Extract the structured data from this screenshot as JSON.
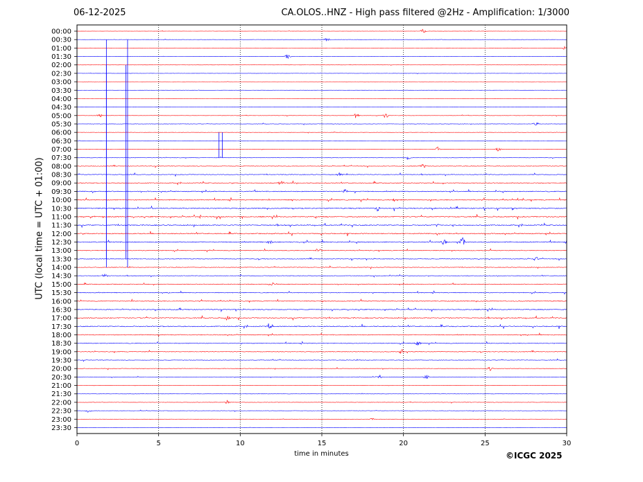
{
  "header": {
    "date": "06-12-2025",
    "title": "CA.OLOS..HNZ - High pass filtered @2Hz - Amplification: 1/3000"
  },
  "footer": {
    "copyright": "©ICGC 2025"
  },
  "chart_data": {
    "type": "line",
    "title": "CA.OLOS..HNZ - High pass filtered @2Hz - Amplification: 1/3000",
    "xlabel": "time in minutes",
    "ylabel": "UTC (local time = UTC + 01:00)",
    "xlim": [
      0,
      30
    ],
    "x_ticks": [
      0,
      5,
      10,
      15,
      20,
      25,
      30
    ],
    "grid": "vertical dotted at x ticks",
    "colors": {
      "odd_trace": "#ff0000",
      "even_trace": "#0000ff"
    },
    "rows": [
      "00:00",
      "00:30",
      "01:00",
      "01:30",
      "02:00",
      "02:30",
      "03:00",
      "03:30",
      "04:00",
      "04:30",
      "05:00",
      "05:30",
      "06:00",
      "06:30",
      "07:00",
      "07:30",
      "08:00",
      "08:30",
      "09:00",
      "09:30",
      "10:00",
      "10:30",
      "11:00",
      "11:30",
      "12:00",
      "12:30",
      "13:00",
      "13:30",
      "14:00",
      "14:30",
      "15:00",
      "15:30",
      "16:00",
      "16:30",
      "17:00",
      "17:30",
      "18:00",
      "18:30",
      "19:00",
      "19:30",
      "20:00",
      "20:30",
      "21:00",
      "21:30",
      "22:00",
      "22:30",
      "23:00",
      "23:30"
    ],
    "noise_level": [
      0.3,
      0.3,
      0.3,
      0.3,
      0.3,
      0.3,
      0.2,
      0.2,
      0.2,
      0.2,
      0.4,
      0.5,
      0.4,
      0.3,
      0.5,
      0.6,
      0.8,
      0.9,
      1.0,
      1.2,
      1.3,
      1.4,
      1.4,
      1.3,
      1.3,
      1.3,
      1.0,
      0.9,
      0.8,
      0.8,
      0.9,
      1.0,
      1.1,
      1.2,
      1.2,
      1.3,
      1.1,
      1.0,
      0.9,
      0.7,
      0.6,
      0.5,
      0.4,
      0.4,
      0.5,
      0.4,
      0.3,
      0.3
    ],
    "events": [
      {
        "row": "00:00",
        "minute": 21.2,
        "amp": 3
      },
      {
        "row": "00:30",
        "minute": 15.3,
        "amp": 3
      },
      {
        "row": "01:00",
        "minute": 29.9,
        "amp": 3
      },
      {
        "row": "01:30",
        "minute": 12.9,
        "amp": 3
      },
      {
        "row": "05:00",
        "minute": 1.4,
        "amp": 3
      },
      {
        "row": "05:00",
        "minute": 17.1,
        "amp": 4
      },
      {
        "row": "05:00",
        "minute": 18.9,
        "amp": 4
      },
      {
        "row": "05:30",
        "minute": 28.1,
        "amp": 3
      },
      {
        "row": "07:00",
        "minute": 22.1,
        "amp": 3
      },
      {
        "row": "07:00",
        "minute": 25.8,
        "amp": 3
      },
      {
        "row": "07:30",
        "minute": 20.3,
        "amp": 3
      },
      {
        "row": "08:00",
        "minute": 21.2,
        "amp": 3
      },
      {
        "row": "08:30",
        "minute": 16.1,
        "amp": 3
      },
      {
        "row": "09:00",
        "minute": 12.5,
        "amp": 3
      },
      {
        "row": "09:30",
        "minute": 16.4,
        "amp": 3
      },
      {
        "row": "10:00",
        "minute": 19.5,
        "amp": 3
      },
      {
        "row": "10:30",
        "minute": 18.4,
        "amp": 4
      },
      {
        "row": "11:30",
        "minute": 22.0,
        "amp": 3
      },
      {
        "row": "12:30",
        "minute": 11.8,
        "amp": 3
      },
      {
        "row": "12:30",
        "minute": 22.5,
        "amp": 4
      },
      {
        "row": "12:30",
        "minute": 23.6,
        "amp": 6
      },
      {
        "row": "13:00",
        "minute": 14.8,
        "amp": 3
      },
      {
        "row": "13:30",
        "minute": 28.1,
        "amp": 3
      },
      {
        "row": "14:30",
        "minute": 1.7,
        "amp": 3
      },
      {
        "row": "15:00",
        "minute": 11.9,
        "amp": 3
      },
      {
        "row": "17:00",
        "minute": 9.2,
        "amp": 3
      },
      {
        "row": "17:30",
        "minute": 11.8,
        "amp": 3
      },
      {
        "row": "18:30",
        "minute": 20.9,
        "amp": 3
      },
      {
        "row": "19:00",
        "minute": 19.9,
        "amp": 3
      },
      {
        "row": "20:00",
        "minute": 25.3,
        "amp": 3
      },
      {
        "row": "20:30",
        "minute": 18.5,
        "amp": 3
      },
      {
        "row": "20:30",
        "minute": 21.4,
        "amp": 3
      },
      {
        "row": "22:00",
        "minute": 9.2,
        "amp": 3
      },
      {
        "row": "22:30",
        "minute": 0.7,
        "amp": 3
      },
      {
        "row": "23:00",
        "minute": 18.1,
        "amp": 2
      }
    ],
    "spikes": [
      {
        "minute": 1.8,
        "from_row": "00:30",
        "to_row": "14:00",
        "color": "#0000ff"
      },
      {
        "minute": 1.8,
        "from_row": "02:00",
        "to_row": "13:30",
        "color": "#0000ff"
      },
      {
        "minute": 3.1,
        "from_row": "00:30",
        "to_row": "14:00",
        "color": "#0000ff"
      },
      {
        "minute": 3.0,
        "from_row": "02:00",
        "to_row": "13:30",
        "color": "#0000ff"
      },
      {
        "minute": 8.7,
        "from_row": "06:00",
        "to_row": "07:30",
        "color": "#0000ff"
      },
      {
        "minute": 8.9,
        "from_row": "06:00",
        "to_row": "07:30",
        "color": "#0000ff"
      }
    ]
  }
}
